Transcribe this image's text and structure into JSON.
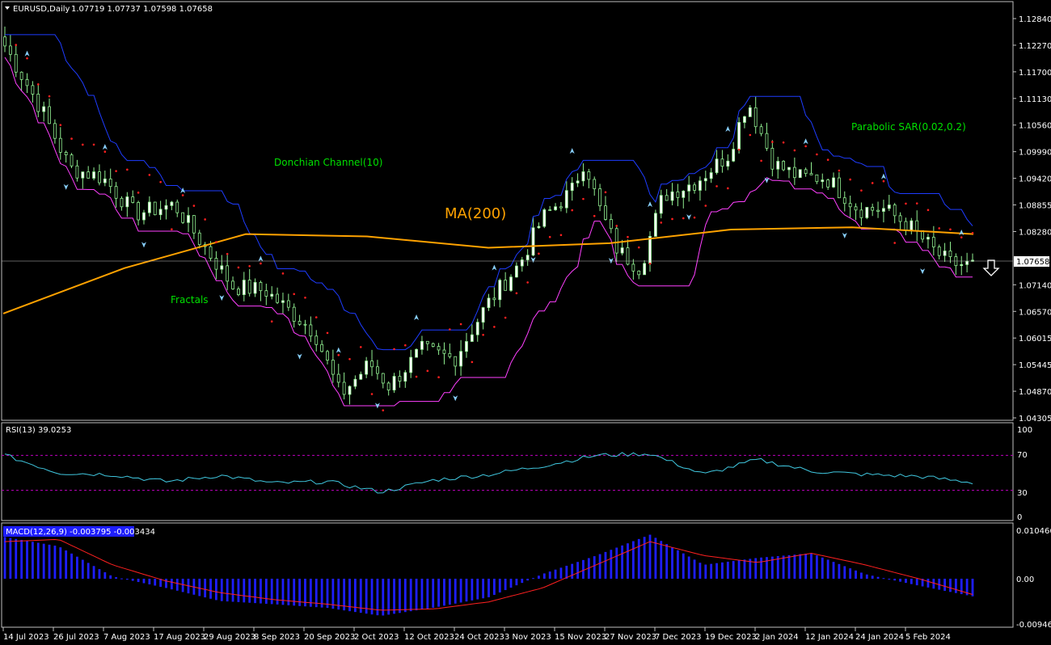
{
  "header": {
    "symbol": "EURUSD,Daily",
    "ohlc": "1.07719 1.07737 1.07598 1.07658"
  },
  "annotations": {
    "donchian": "Donchian Channel(10)",
    "ma": "MA(200)",
    "fractals": "Fractals",
    "psar": "Parabolic SAR(0.02,0.2)"
  },
  "price_panel": {
    "y_ticks": [
      "1.12840",
      "1.12270",
      "1.11700",
      "1.11130",
      "1.10560",
      "1.09990",
      "1.09420",
      "1.08855",
      "1.08280",
      "1.07140",
      "1.06570",
      "1.06015",
      "1.05445",
      "1.04870",
      "1.04305"
    ],
    "current_price": "1.07658"
  },
  "rsi_panel": {
    "title": "RSI(13) 39.0253",
    "y_ticks": [
      "100",
      "70",
      "30",
      "0"
    ]
  },
  "macd_panel": {
    "title": "MACD(12,26,9) -0.003795 -0.003434",
    "y_ticks": [
      "0.010466",
      "0.00",
      "-0.009467"
    ]
  },
  "x_ticks": [
    "14 Jul 2023",
    "26 Jul 2023",
    "7 Aug 2023",
    "17 Aug 2023",
    "29 Aug 2023",
    "8 Sep 2023",
    "20 Sep 2023",
    "2 Oct 2023",
    "12 Oct 2023",
    "24 Oct 2023",
    "3 Nov 2023",
    "15 Nov 2023",
    "27 Nov 2023",
    "7 Dec 2023",
    "19 Dec 2023",
    "2 Jan 2024",
    "12 Jan 2024",
    "24 Jan 2024",
    "5 Feb 2024"
  ],
  "colors": {
    "candle": "#90ee90",
    "ma": "#ffa200",
    "donchian_upper": "#1e3cff",
    "donchian_lower": "#ff40ff",
    "psar": "#ff2020",
    "fractal": "#87cefa",
    "rsi": "#40c8e0",
    "macd_hist": "#1e1eff",
    "macd_signal": "#ff2020"
  },
  "chart_data": [
    {
      "type": "line",
      "title": "EURUSD,Daily",
      "x_range": [
        "14 Jul 2023",
        "12 Feb 2024"
      ],
      "ylim": [
        1.043,
        1.131
      ],
      "series": [
        {
          "name": "MA(200)",
          "x": [
            "14 Jul 2023",
            "14 Aug 2023",
            "8 Sep 2023",
            "12 Oct 2023",
            "3 Nov 2023",
            "27 Nov 2023",
            "2 Jan 2024",
            "12 Jan 2024",
            "5 Feb 2024"
          ],
          "values": [
            1.066,
            1.076,
            1.0835,
            1.083,
            1.0805,
            1.0815,
            1.0845,
            1.085,
            1.0835
          ]
        },
        {
          "name": "Close",
          "x": [
            "14 Jul 2023",
            "26 Jul 2023",
            "7 Aug 2023",
            "17 Aug 2023",
            "29 Aug 2023",
            "8 Sep 2023",
            "20 Sep 2023",
            "2 Oct 2023",
            "12 Oct 2023",
            "24 Oct 2023",
            "3 Nov 2023",
            "15 Nov 2023",
            "27 Nov 2023",
            "7 Dec 2023",
            "19 Dec 2023",
            "2 Jan 2024",
            "12 Jan 2024",
            "24 Jan 2024",
            "5 Feb 2024"
          ],
          "values": [
            1.123,
            1.106,
            1.099,
            1.087,
            1.0845,
            1.07,
            1.066,
            1.048,
            1.053,
            1.058,
            1.073,
            1.088,
            1.095,
            1.078,
            1.097,
            1.094,
            1.095,
            1.085,
            1.0766
          ]
        }
      ]
    },
    {
      "type": "line",
      "title": "RSI(13) 39.0253",
      "ylim": [
        0,
        100
      ],
      "levels": [
        70,
        30
      ],
      "x": [
        "14 Jul 2023",
        "26 Jul 2023",
        "7 Aug 2023",
        "17 Aug 2023",
        "29 Aug 2023",
        "8 Sep 2023",
        "20 Sep 2023",
        "2 Oct 2023",
        "12 Oct 2023",
        "24 Oct 2023",
        "3 Nov 2023",
        "15 Nov 2023",
        "27 Nov 2023",
        "7 Dec 2023",
        "19 Dec 2023",
        "2 Jan 2024",
        "12 Jan 2024",
        "24 Jan 2024",
        "5 Feb 2024"
      ],
      "values": [
        70,
        50,
        48,
        40,
        47,
        38,
        40,
        28,
        42,
        48,
        58,
        70,
        72,
        48,
        65,
        52,
        48,
        46,
        39
      ]
    },
    {
      "type": "bar",
      "title": "MACD(12,26,9) -0.003795 -0.003434",
      "ylim": [
        -0.009467,
        0.010466
      ],
      "x": [
        "14 Jul 2023",
        "26 Jul 2023",
        "7 Aug 2023",
        "17 Aug 2023",
        "29 Aug 2023",
        "8 Sep 2023",
        "20 Sep 2023",
        "2 Oct 2023",
        "12 Oct 2023",
        "24 Oct 2023",
        "3 Nov 2023",
        "15 Nov 2023",
        "27 Nov 2023",
        "7 Dec 2023",
        "19 Dec 2023",
        "2 Jan 2024",
        "12 Jan 2024",
        "24 Jan 2024",
        "5 Feb 2024"
      ],
      "series": [
        {
          "name": "MACD",
          "values": [
            0.009,
            0.007,
            0.0005,
            -0.002,
            -0.0048,
            -0.0055,
            -0.0063,
            -0.008,
            -0.0062,
            -0.004,
            0.001,
            0.005,
            0.0095,
            0.003,
            0.0045,
            0.0055,
            0.001,
            -0.0015,
            -0.0038
          ]
        },
        {
          "name": "Signal",
          "values": [
            0.008,
            0.0085,
            0.003,
            -0.0005,
            -0.003,
            -0.0045,
            -0.0055,
            -0.0068,
            -0.0065,
            -0.005,
            -0.002,
            0.003,
            0.008,
            0.005,
            0.0035,
            0.0055,
            0.003,
            0.0,
            -0.0034
          ]
        }
      ]
    }
  ]
}
